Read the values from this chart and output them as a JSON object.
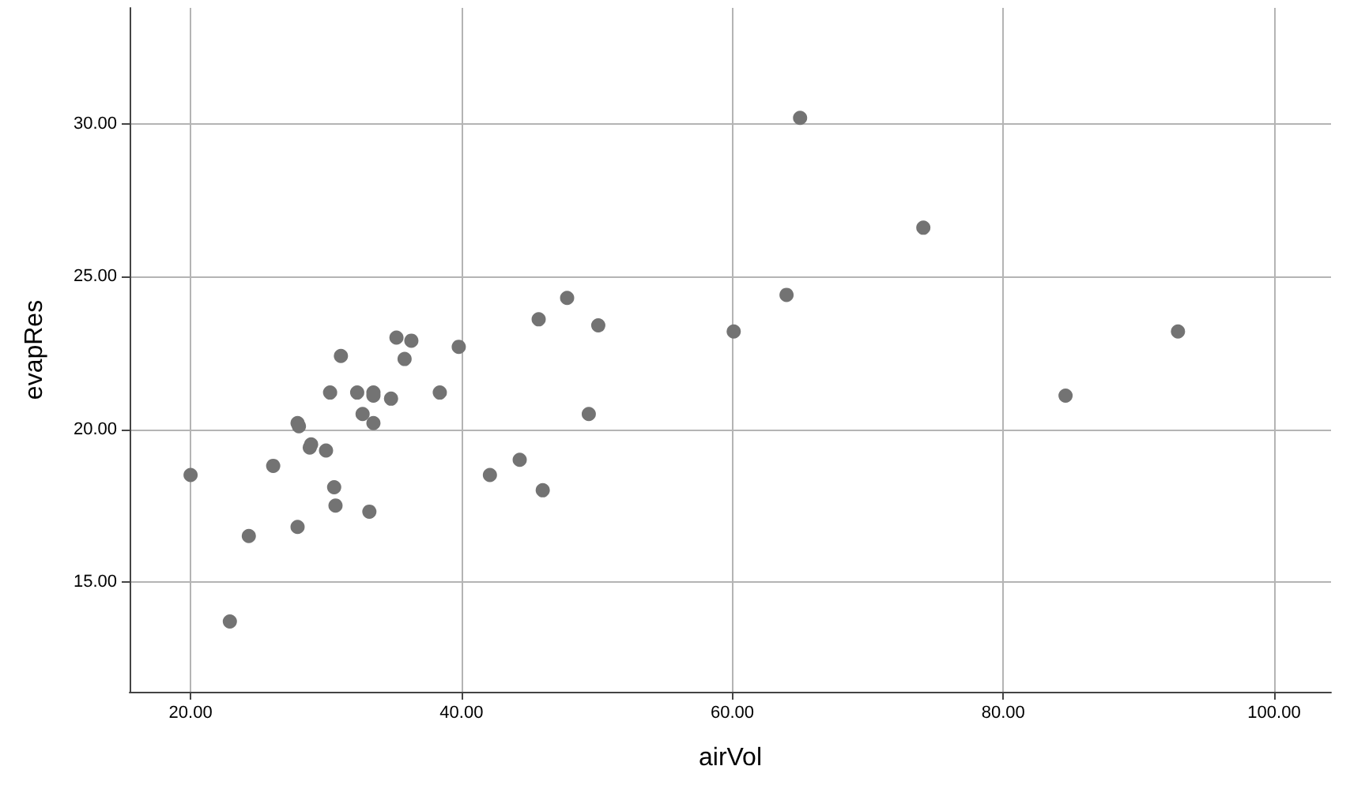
{
  "chart_data": {
    "type": "scatter",
    "xlabel": "airVol",
    "ylabel": "evapRes",
    "x": [
      20.0,
      22.9,
      24.3,
      26.1,
      27.9,
      28.0,
      27.9,
      28.8,
      28.9,
      30.0,
      30.6,
      30.7,
      33.2,
      31.1,
      30.3,
      32.3,
      33.5,
      33.5,
      34.8,
      32.7,
      33.5,
      35.2,
      36.3,
      35.8,
      38.4,
      39.8,
      42.1,
      44.3,
      46.0,
      49.4,
      45.7,
      47.8,
      50.1,
      60.1,
      64.0,
      65.0,
      74.1,
      84.6,
      92.9
    ],
    "series": [
      {
        "color": "#737373",
        "values": [
          18.5,
          13.7,
          16.5,
          18.8,
          20.2,
          20.1,
          16.8,
          19.4,
          19.5,
          19.3,
          18.1,
          17.5,
          17.3,
          22.4,
          21.2,
          21.2,
          21.2,
          21.1,
          21.0,
          20.5,
          20.2,
          23.0,
          22.9,
          22.3,
          21.2,
          22.7,
          18.5,
          19.0,
          18.0,
          20.5,
          23.6,
          24.3,
          23.4,
          23.2,
          24.4,
          30.2,
          26.6,
          21.1,
          23.2
        ]
      }
    ],
    "xlim": [
      15.5,
      104.2
    ],
    "ylim": [
      11.4,
      33.8
    ],
    "xticks": [
      {
        "value": 20,
        "label": "20.00"
      },
      {
        "value": 40,
        "label": "40.00"
      },
      {
        "value": 60,
        "label": "60.00"
      },
      {
        "value": 80,
        "label": "80.00"
      },
      {
        "value": 100,
        "label": "100.00"
      }
    ],
    "yticks": [
      {
        "value": 15,
        "label": "15.00"
      },
      {
        "value": 20,
        "label": "20.00"
      },
      {
        "value": 25,
        "label": "25.00"
      },
      {
        "value": 30,
        "label": "30.00"
      }
    ],
    "grid": true,
    "marker": "circle"
  }
}
